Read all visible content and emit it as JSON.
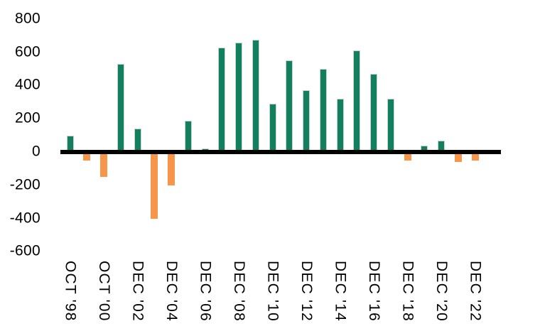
{
  "chart_data": {
    "type": "bar",
    "title": "",
    "xlabel": "",
    "ylabel": "",
    "ylim": [
      -600,
      800
    ],
    "grid": false,
    "legend": null,
    "y_ticks": [
      800,
      600,
      400,
      200,
      0,
      -200,
      -400,
      -600
    ],
    "x_tick_labels": [
      "OCT '98",
      "OCT '00",
      "DEC '02",
      "DEC '04",
      "DEC '06",
      "DEC '08",
      "DEC '10",
      "DEC '12",
      "DEC '14",
      "DEC '16",
      "DEC '18",
      "DEC '20",
      "DEC '22"
    ],
    "bars": [
      {
        "label": "OCT '98",
        "value": 100
      },
      {
        "label": "",
        "value": -50
      },
      {
        "label": "OCT '00",
        "value": -150
      },
      {
        "label": "",
        "value": 530
      },
      {
        "label": "DEC '02",
        "value": 140
      },
      {
        "label": "",
        "value": -400
      },
      {
        "label": "DEC '04",
        "value": -200
      },
      {
        "label": "",
        "value": 190
      },
      {
        "label": "DEC '06",
        "value": 20
      },
      {
        "label": "",
        "value": 630
      },
      {
        "label": "DEC '08",
        "value": 660
      },
      {
        "label": "",
        "value": 675
      },
      {
        "label": "DEC '10",
        "value": 290
      },
      {
        "label": "",
        "value": 550
      },
      {
        "label": "DEC '12",
        "value": 370
      },
      {
        "label": "",
        "value": 500
      },
      {
        "label": "DEC '14",
        "value": 320
      },
      {
        "label": "",
        "value": 610
      },
      {
        "label": "DEC '16",
        "value": 470
      },
      {
        "label": "",
        "value": 320
      },
      {
        "label": "DEC '18",
        "value": -50
      },
      {
        "label": "",
        "value": 40
      },
      {
        "label": "DEC '20",
        "value": 70
      },
      {
        "label": "",
        "value": -60
      },
      {
        "label": "DEC '22",
        "value": -50
      }
    ],
    "positive_color": "#12805E",
    "negative_color": "#F7964A",
    "axis_line_color": "#000000"
  }
}
